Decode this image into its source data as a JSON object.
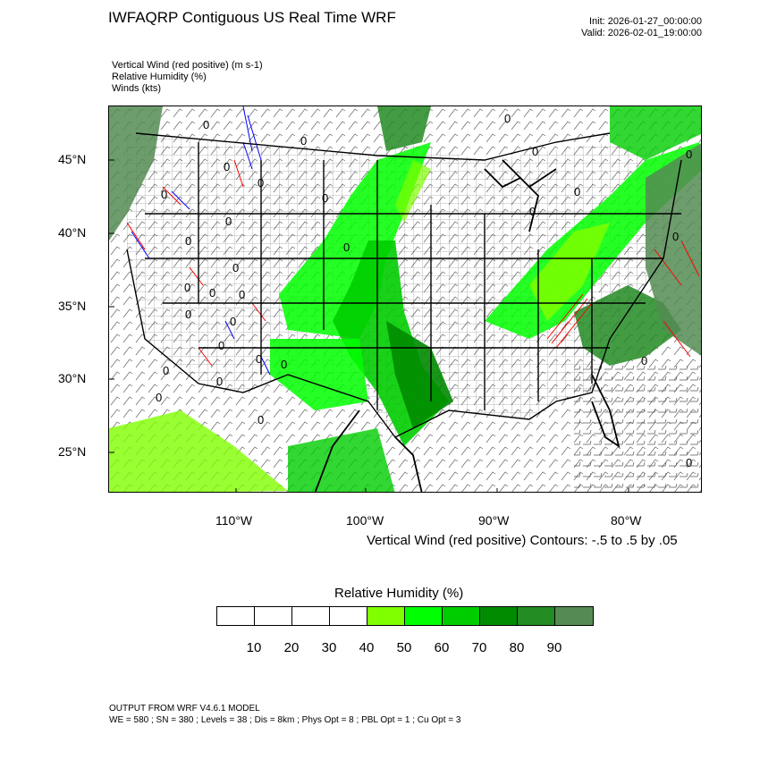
{
  "header": {
    "title": "IWFAQRP Contiguous US Real Time WRF",
    "init": "Init: 2026-01-27_00:00:00",
    "valid": "Valid: 2026-02-01_19:00:00"
  },
  "fields": [
    "Vertical Wind (red positive)   (m s-1)",
    "Relative Humidity   (%)",
    "Winds   (kts)"
  ],
  "map": {
    "lat_labels": [
      "45°N",
      "40°N",
      "35°N",
      "30°N",
      "25°N"
    ],
    "lon_labels": [
      "110°W",
      "100°W",
      "90°W",
      "80°W"
    ],
    "contour_zero_label": "0",
    "colors": {
      "rh_40_50": "#7fff00",
      "rh_50_60": "#00ff00",
      "rh_60_70": "#00cd00",
      "rh_70_80": "#008b00",
      "rh_80_90": "#228b22",
      "rh_90_100": "#548b54",
      "updraft": "#ff0000",
      "downdraft": "#0000ff",
      "borders": "#000000"
    }
  },
  "contour_note": "Vertical Wind (red positive) Contours: -.5 to .5 by .05",
  "colorbar": {
    "title": "Relative Humidity   (%)",
    "ticks": [
      "10",
      "20",
      "30",
      "40",
      "50",
      "60",
      "70",
      "80",
      "90"
    ],
    "colors": [
      "#ffffff",
      "#ffffff",
      "#ffffff",
      "#ffffff",
      "#7fff00",
      "#00ff00",
      "#00cd00",
      "#008b00",
      "#228b22",
      "#548b54"
    ]
  },
  "footer": {
    "line1": "OUTPUT FROM WRF V4.6.1 MODEL",
    "line2": "WE = 580 ; SN = 380 ; Levels = 38 ; Dis = 8km ; Phys Opt = 8 ; PBL Opt = 1 ; Cu Opt = 3"
  }
}
